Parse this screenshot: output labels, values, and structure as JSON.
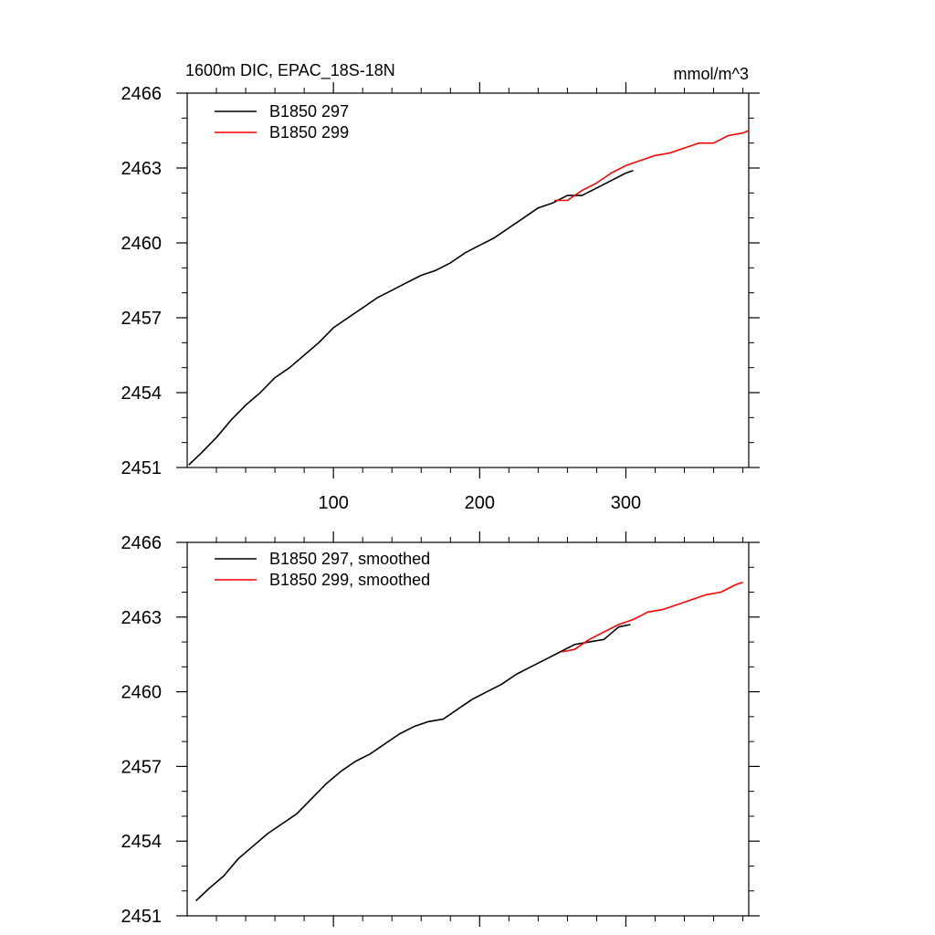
{
  "chart_data": [
    {
      "type": "line",
      "title": "1600m DIC, EPAC_18S-18N",
      "units": "mmol/m^3",
      "xlim": [
        0,
        384
      ],
      "ylim": [
        2451,
        2466
      ],
      "x_ticks": [
        100,
        200,
        300
      ],
      "x_tick_labels": [
        "100",
        "200",
        "300"
      ],
      "y_ticks": [
        2451,
        2454,
        2457,
        2460,
        2463,
        2466
      ],
      "y_tick_labels": [
        "2451",
        "2454",
        "2457",
        "2460",
        "2463",
        "2466"
      ],
      "legend_position": "top-left",
      "series": [
        {
          "name": "B1850 297",
          "color": "#000000",
          "x": [
            1,
            10,
            20,
            30,
            40,
            50,
            60,
            70,
            80,
            90,
            100,
            110,
            120,
            130,
            140,
            150,
            160,
            170,
            180,
            190,
            200,
            210,
            220,
            230,
            240,
            250,
            260,
            270,
            280,
            290,
            300,
            305
          ],
          "y": [
            2451.1,
            2451.6,
            2452.2,
            2452.9,
            2453.5,
            2454.0,
            2454.6,
            2455.0,
            2455.5,
            2456.0,
            2456.6,
            2457.0,
            2457.4,
            2457.8,
            2458.1,
            2458.4,
            2458.7,
            2458.9,
            2459.2,
            2459.6,
            2459.9,
            2460.2,
            2460.6,
            2461.0,
            2461.4,
            2461.6,
            2461.9,
            2461.9,
            2462.2,
            2462.5,
            2462.8,
            2462.9
          ]
        },
        {
          "name": "B1850 299",
          "color": "#ff0000",
          "x": [
            251,
            260,
            270,
            280,
            290,
            300,
            310,
            320,
            330,
            340,
            350,
            360,
            370,
            380,
            384
          ],
          "y": [
            2461.7,
            2461.7,
            2462.1,
            2462.4,
            2462.8,
            2463.1,
            2463.3,
            2463.5,
            2463.6,
            2463.8,
            2464.0,
            2464.0,
            2464.3,
            2464.4,
            2464.5
          ]
        }
      ]
    },
    {
      "type": "line",
      "xlim": [
        0,
        384
      ],
      "ylim": [
        2451,
        2466
      ],
      "y_ticks": [
        2451,
        2454,
        2457,
        2460,
        2463,
        2466
      ],
      "y_tick_labels": [
        "2451",
        "2454",
        "2457",
        "2460",
        "2463",
        "2466"
      ],
      "legend_position": "top-left",
      "series": [
        {
          "name": "B1850 297, smoothed",
          "color": "#000000",
          "x": [
            6,
            15,
            25,
            35,
            45,
            55,
            65,
            75,
            85,
            95,
            105,
            115,
            125,
            135,
            145,
            155,
            165,
            175,
            185,
            195,
            205,
            215,
            225,
            235,
            245,
            255,
            265,
            275,
            285,
            295,
            303
          ],
          "y": [
            2451.6,
            2452.1,
            2452.6,
            2453.3,
            2453.8,
            2454.3,
            2454.7,
            2455.1,
            2455.7,
            2456.3,
            2456.8,
            2457.2,
            2457.5,
            2457.9,
            2458.3,
            2458.6,
            2458.8,
            2458.9,
            2459.3,
            2459.7,
            2460.0,
            2460.3,
            2460.7,
            2461.0,
            2461.3,
            2461.6,
            2461.9,
            2462.0,
            2462.1,
            2462.6,
            2462.7
          ]
        },
        {
          "name": "B1850 299, smoothed",
          "color": "#ff0000",
          "x": [
            256,
            265,
            275,
            285,
            295,
            305,
            315,
            325,
            335,
            345,
            355,
            365,
            375,
            380
          ],
          "y": [
            2461.6,
            2461.7,
            2462.1,
            2462.4,
            2462.7,
            2462.9,
            2463.2,
            2463.3,
            2463.5,
            2463.7,
            2463.9,
            2464.0,
            2464.3,
            2464.4
          ]
        }
      ]
    }
  ]
}
